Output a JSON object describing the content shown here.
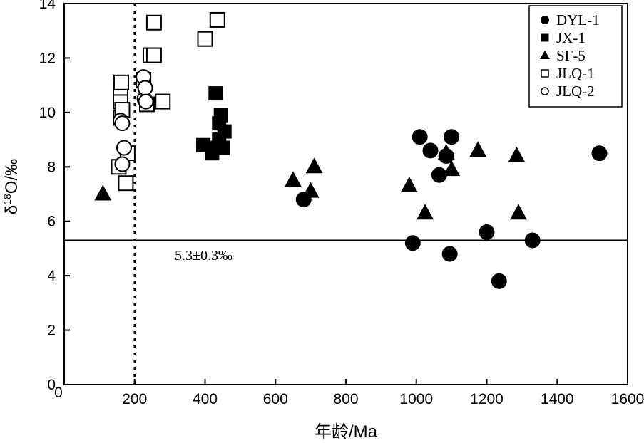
{
  "chart_data": {
    "type": "scatter",
    "title": "",
    "xlabel": "年龄/Ma",
    "ylabel": "δ¹⁸O/‰",
    "ylabel_parts": {
      "delta": "δ",
      "sup": "18",
      "rest": "O/‰"
    },
    "xlim": [
      0,
      1600
    ],
    "ylim": [
      0,
      14
    ],
    "xticks": [
      0,
      200,
      400,
      600,
      800,
      1000,
      1200,
      1400,
      1600
    ],
    "yticks": [
      0,
      2,
      4,
      6,
      8,
      10,
      12,
      14
    ],
    "grid": false,
    "legend_position": "top-right",
    "reference_line": {
      "y": 5.3,
      "label": "5.3±0.3‰",
      "style": "solid"
    },
    "vertical_line": {
      "x": 200,
      "style": "dotted"
    },
    "series": [
      {
        "name": "DYL-1",
        "marker": "filled-circle",
        "points": [
          [
            680,
            6.8
          ],
          [
            990,
            5.2
          ],
          [
            1010,
            9.1
          ],
          [
            1040,
            8.6
          ],
          [
            1065,
            7.7
          ],
          [
            1085,
            8.4
          ],
          [
            1095,
            4.8
          ],
          [
            1100,
            9.1
          ],
          [
            1200,
            5.6
          ],
          [
            1235,
            3.8
          ],
          [
            1330,
            5.3
          ],
          [
            1520,
            8.5
          ]
        ]
      },
      {
        "name": "JX-1",
        "marker": "filled-square",
        "points": [
          [
            395,
            8.8
          ],
          [
            420,
            8.5
          ],
          [
            425,
            8.7
          ],
          [
            430,
            10.7
          ],
          [
            440,
            9.6
          ],
          [
            440,
            9.0
          ],
          [
            445,
            9.9
          ],
          [
            450,
            8.7
          ],
          [
            455,
            9.3
          ]
        ]
      },
      {
        "name": "SF-5",
        "marker": "filled-triangle",
        "points": [
          [
            110,
            7.0
          ],
          [
            650,
            7.5
          ],
          [
            700,
            7.1
          ],
          [
            710,
            8.0
          ],
          [
            980,
            7.3
          ],
          [
            1025,
            6.3
          ],
          [
            1085,
            8.5
          ],
          [
            1100,
            7.9
          ],
          [
            1175,
            8.6
          ],
          [
            1285,
            8.4
          ],
          [
            1290,
            6.3
          ]
        ]
      },
      {
        "name": "JLQ-1",
        "marker": "open-square",
        "points": [
          [
            155,
            8.0
          ],
          [
            160,
            9.8
          ],
          [
            160,
            10.4
          ],
          [
            160,
            10.9
          ],
          [
            162,
            11.1
          ],
          [
            165,
            10.1
          ],
          [
            175,
            7.4
          ],
          [
            180,
            8.5
          ],
          [
            225,
            11.2
          ],
          [
            235,
            10.3
          ],
          [
            245,
            12.1
          ],
          [
            255,
            12.1
          ],
          [
            255,
            13.3
          ],
          [
            280,
            10.4
          ],
          [
            400,
            12.7
          ],
          [
            435,
            13.4
          ]
        ]
      },
      {
        "name": "JLQ-2",
        "marker": "open-circle",
        "points": [
          [
            160,
            9.7
          ],
          [
            165,
            9.6
          ],
          [
            165,
            8.1
          ],
          [
            170,
            8.7
          ],
          [
            225,
            11.3
          ],
          [
            228,
            10.5
          ],
          [
            230,
            10.9
          ],
          [
            232,
            10.4
          ]
        ]
      }
    ]
  }
}
